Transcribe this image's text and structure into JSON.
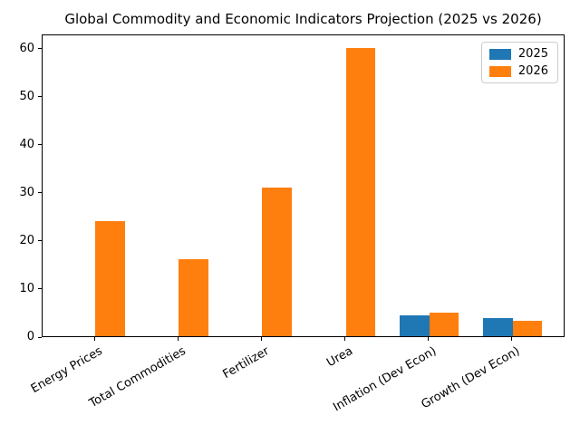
{
  "chart_data": {
    "type": "bar",
    "title": "Global Commodity and Economic Indicators Projection (2025 vs 2026)",
    "categories": [
      "Energy Prices",
      "Total Commodities",
      "Fertilizer",
      "Urea",
      "Inflation (Dev Econ)",
      "Growth (Dev Econ)"
    ],
    "series": [
      {
        "name": "2025",
        "color": "#1f77b4",
        "values": [
          0,
          0,
          0,
          0,
          4.3,
          3.8
        ]
      },
      {
        "name": "2026",
        "color": "#ff7f0e",
        "values": [
          24,
          16,
          31,
          60,
          4.9,
          3.2
        ]
      }
    ],
    "xlabel": "",
    "ylabel": "",
    "ylim": [
      0,
      63
    ],
    "yticks": [
      0,
      10,
      20,
      30,
      40,
      50,
      60
    ],
    "bar_width": 0.35,
    "x_tick_rotation": 30,
    "grid": false,
    "legend_position": "upper right",
    "legend_border_color": "#cccccc",
    "axis_color": "#000000",
    "background_color": "#ffffff"
  }
}
